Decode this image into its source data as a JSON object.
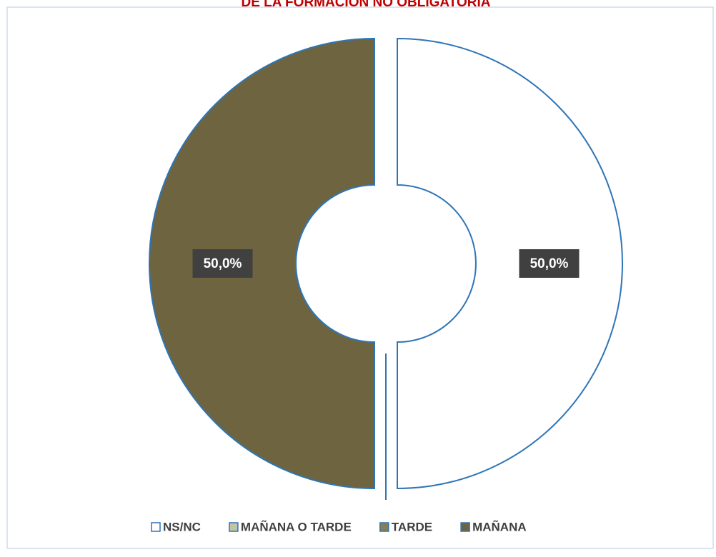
{
  "chart_data": {
    "type": "pie",
    "donut": true,
    "title": "DE LA FORMACIÓN NO OBLIGATORIA",
    "categories": [
      "NS/NC",
      "MAÑANA O TARDE",
      "TARDE",
      "MAÑANA"
    ],
    "values": [
      50,
      0,
      0,
      50
    ],
    "value_labels": [
      "50,0%",
      null,
      null,
      "50,0%"
    ],
    "colors": [
      "#ffffff",
      "#c4c4a4",
      "#8c7e4c",
      "#6e6540"
    ],
    "legend": "bottom"
  }
}
